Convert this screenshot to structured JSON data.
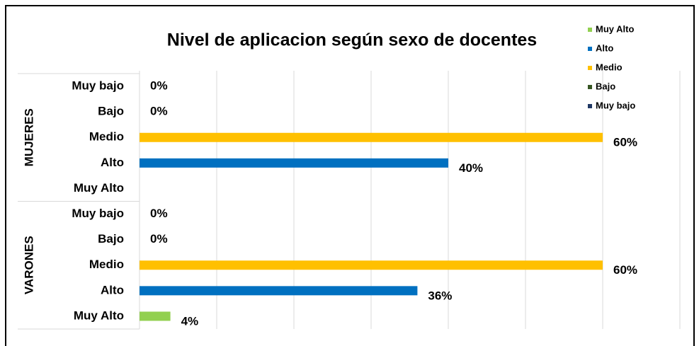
{
  "chart_data": {
    "type": "bar",
    "orientation": "horizontal",
    "title": "Nivel de aplicacion según sexo de docentes",
    "categories": [
      "MUJERES",
      "VARONES"
    ],
    "series": [
      {
        "name": "Muy Alto",
        "color": "#92d050",
        "values": [
          null,
          4
        ],
        "value_labels": [
          null,
          "4%"
        ]
      },
      {
        "name": "Alto",
        "color": "#0070c0",
        "values": [
          40,
          36
        ],
        "value_labels": [
          "40%",
          "36%"
        ]
      },
      {
        "name": "Medio",
        "color": "#ffc000",
        "values": [
          60,
          60
        ],
        "value_labels": [
          "60%",
          "60%"
        ]
      },
      {
        "name": "Bajo",
        "color": "#375623",
        "values": [
          0,
          0
        ],
        "value_labels": [
          "0%",
          "0%"
        ]
      },
      {
        "name": "Muy bajo",
        "color": "#203864",
        "values": [
          0,
          0
        ],
        "value_labels": [
          "0%",
          "0%"
        ]
      }
    ],
    "xlim": [
      0,
      70
    ],
    "xticks": [
      0,
      10,
      20,
      30,
      40,
      50,
      60,
      70
    ],
    "grid": true,
    "legend": "top-right"
  }
}
